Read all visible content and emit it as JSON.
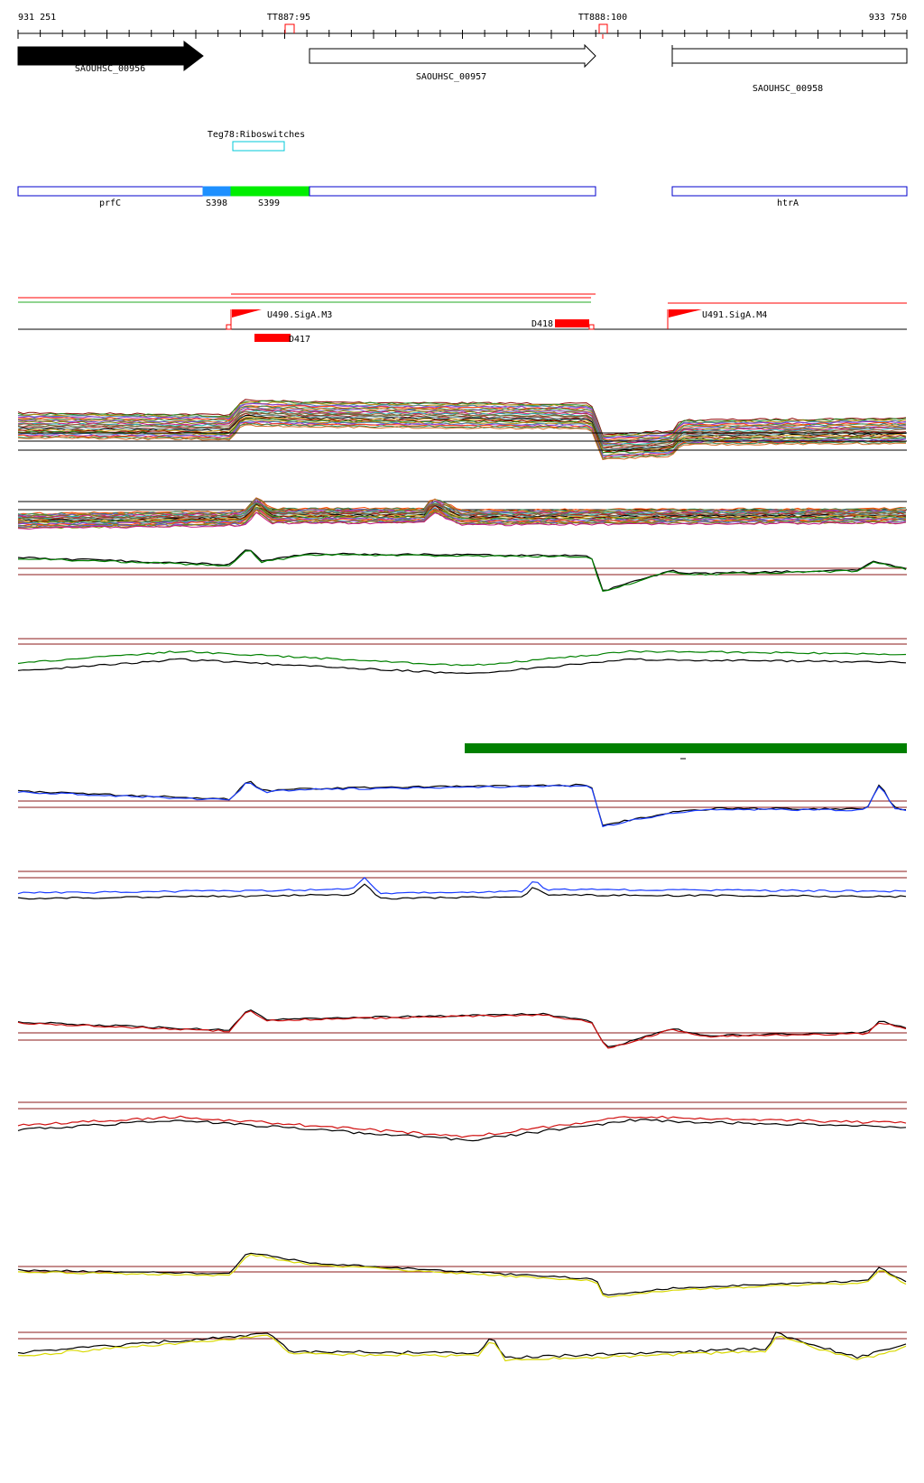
{
  "ruler": {
    "start_label": "931 251",
    "end_label": "933 750",
    "terminators": [
      {
        "label": "TT887:95"
      },
      {
        "label": "TT888:100"
      }
    ]
  },
  "genes": [
    {
      "label": "SAOUHSC_00956",
      "strand": "+",
      "filled": true
    },
    {
      "label": "SAOUHSC_00957",
      "strand": "+",
      "filled": false
    },
    {
      "label": "SAOUHSC_00958",
      "strand": "+",
      "filled": false
    }
  ],
  "riboswitch": {
    "label": "Teg78:Riboswitches",
    "color": "#00c8d8"
  },
  "segments": [
    {
      "label": "prfC",
      "color": "#ffffff",
      "outline": "#0000cc"
    },
    {
      "label": "S398",
      "color": "#1e90ff",
      "outline": "#1e90ff"
    },
    {
      "label": "S399",
      "color": "#00ee00",
      "outline": "#00ee00"
    },
    {
      "label": "",
      "color": "#ffffff",
      "outline": "#0000cc"
    },
    {
      "label": "htrA",
      "color": "#ffffff",
      "outline": "#0000cc"
    }
  ],
  "promoters": [
    {
      "label": "U490.SigA.M3",
      "color": "#ff0000"
    },
    {
      "label": "U491.SigA.M4",
      "color": "#ff0000"
    }
  ],
  "downshifts": [
    {
      "label": "D417",
      "color": "#ff0000"
    },
    {
      "label": "D418",
      "color": "#ff0000"
    }
  ],
  "colors": {
    "expression_green": "#008000",
    "track_blue": "#1a3cff",
    "track_red": "#d01010",
    "track_yellow": "#d8d800",
    "threshold": "#8b1a1a"
  }
}
